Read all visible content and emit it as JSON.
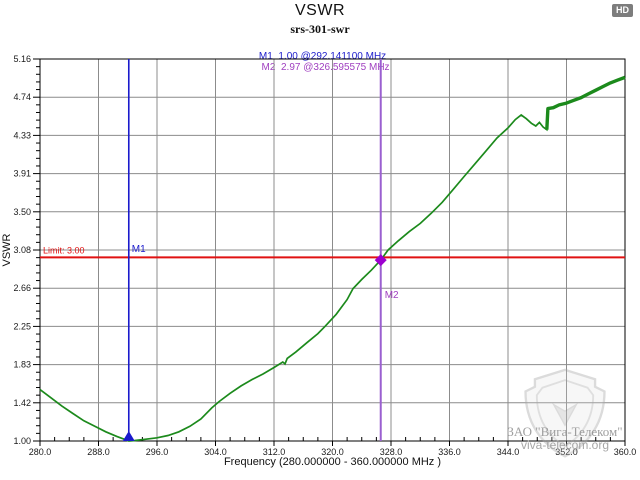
{
  "header": {
    "title": "VSWR",
    "subtitle": "srs-301-swr",
    "hd_badge": "HD"
  },
  "readout": {
    "m1": "M1  1.00 @292.141100 MHz",
    "m2": "M2  2.97 @326.595575 MHz"
  },
  "watermark": {
    "line1": "ЗАО \"Вига-Телеком\"",
    "line2": "viva-telecom.org"
  },
  "colors": {
    "trace": "#1c8a1c",
    "marker1": "#1a1acc",
    "marker2_line": "#9a5fd0",
    "marker2_fill": "#9d00d0",
    "marker2_text": "#a040c0",
    "limit": "#e01212",
    "grid": "#8c8c8c",
    "axis": "#000000",
    "tick_text": "#1a1a1a"
  },
  "chart_data": {
    "type": "line",
    "title": "VSWR",
    "subtitle": "srs-301-swr",
    "xlabel": "Frequency (280.000000 - 360.000000 MHz )",
    "ylabel": "VSWR",
    "xlim": [
      280,
      360
    ],
    "ylim": [
      1.0,
      5.16
    ],
    "grid": true,
    "legend_position": "none",
    "x_ticks": [
      {
        "label": "280.0",
        "v": 280
      },
      {
        "label": "288.0",
        "v": 288
      },
      {
        "label": "296.0",
        "v": 296
      },
      {
        "label": "304.0",
        "v": 304
      },
      {
        "label": "312.0",
        "v": 312
      },
      {
        "label": "320.0",
        "v": 320
      },
      {
        "label": "328.0",
        "v": 328
      },
      {
        "label": "336.0",
        "v": 336
      },
      {
        "label": "344.0",
        "v": 344
      },
      {
        "label": "352.0",
        "v": 352
      },
      {
        "label": "360.0",
        "v": 360
      }
    ],
    "y_ticks": [
      {
        "label": "1.00",
        "v": 1.0
      },
      {
        "label": "1.42",
        "v": 1.416
      },
      {
        "label": "1.83",
        "v": 1.832
      },
      {
        "label": "2.25",
        "v": 2.248
      },
      {
        "label": "2.66",
        "v": 2.664
      },
      {
        "label": "3.08",
        "v": 3.08
      },
      {
        "label": "3.50",
        "v": 3.496
      },
      {
        "label": "3.91",
        "v": 3.912
      },
      {
        "label": "4.33",
        "v": 4.328
      },
      {
        "label": "4.74",
        "v": 4.744
      },
      {
        "label": "5.16",
        "v": 5.16
      }
    ],
    "x_minor_step_mhz": 2,
    "y_minor_divisions": 5,
    "limit_line": {
      "label": "Limit: 3.00",
      "value": 3.0
    },
    "markers": [
      {
        "id": "M1",
        "vswr": 1.0,
        "freq_mhz": 292.1411,
        "shape": "triangle"
      },
      {
        "id": "M2",
        "vswr": 2.97,
        "freq_mhz": 326.595575,
        "shape": "diamond"
      }
    ],
    "series": [
      {
        "name": "VSWR trace",
        "thick_from_mhz": 349.45,
        "points": [
          [
            280.0,
            1.56
          ],
          [
            281.5,
            1.47
          ],
          [
            283.0,
            1.38
          ],
          [
            284.5,
            1.3
          ],
          [
            286.0,
            1.22
          ],
          [
            287.5,
            1.16
          ],
          [
            289.0,
            1.1
          ],
          [
            290.5,
            1.05
          ],
          [
            291.5,
            1.02
          ],
          [
            292.1411,
            1.0
          ],
          [
            293.0,
            1.005
          ],
          [
            294.5,
            1.02
          ],
          [
            296.0,
            1.035
          ],
          [
            297.5,
            1.06
          ],
          [
            299.0,
            1.1
          ],
          [
            300.5,
            1.16
          ],
          [
            302.0,
            1.24
          ],
          [
            303.5,
            1.36
          ],
          [
            304.5,
            1.43
          ],
          [
            306.0,
            1.52
          ],
          [
            307.5,
            1.6
          ],
          [
            309.0,
            1.67
          ],
          [
            310.5,
            1.73
          ],
          [
            312.0,
            1.8
          ],
          [
            313.2,
            1.86
          ],
          [
            313.5,
            1.84
          ],
          [
            313.8,
            1.9
          ],
          [
            315.0,
            1.97
          ],
          [
            316.5,
            2.07
          ],
          [
            318.0,
            2.17
          ],
          [
            319.0,
            2.25
          ],
          [
            320.5,
            2.38
          ],
          [
            322.0,
            2.54
          ],
          [
            322.8,
            2.66
          ],
          [
            324.0,
            2.76
          ],
          [
            325.3,
            2.86
          ],
          [
            326.595575,
            2.97
          ],
          [
            327.6,
            3.08
          ],
          [
            329.0,
            3.18
          ],
          [
            330.5,
            3.28
          ],
          [
            332.0,
            3.37
          ],
          [
            333.5,
            3.48
          ],
          [
            335.0,
            3.6
          ],
          [
            336.5,
            3.74
          ],
          [
            338.0,
            3.88
          ],
          [
            339.5,
            4.02
          ],
          [
            341.0,
            4.16
          ],
          [
            342.5,
            4.3
          ],
          [
            344.0,
            4.41
          ],
          [
            345.0,
            4.5
          ],
          [
            345.8,
            4.55
          ],
          [
            346.5,
            4.51
          ],
          [
            347.2,
            4.46
          ],
          [
            347.8,
            4.43
          ],
          [
            348.3,
            4.47
          ],
          [
            348.8,
            4.42
          ],
          [
            349.3,
            4.39
          ],
          [
            349.45,
            4.62
          ],
          [
            350.2,
            4.63
          ],
          [
            351.0,
            4.66
          ],
          [
            352.0,
            4.68
          ],
          [
            353.0,
            4.71
          ],
          [
            354.0,
            4.74
          ],
          [
            355.0,
            4.78
          ],
          [
            356.0,
            4.82
          ],
          [
            357.0,
            4.86
          ],
          [
            358.0,
            4.9
          ],
          [
            359.0,
            4.93
          ],
          [
            360.0,
            4.96
          ]
        ]
      }
    ]
  }
}
